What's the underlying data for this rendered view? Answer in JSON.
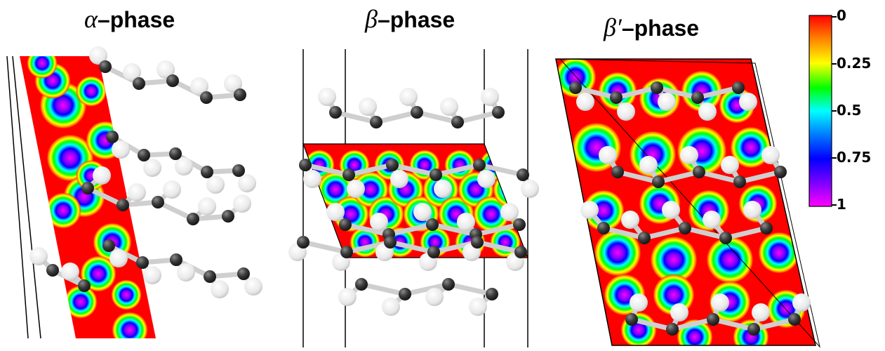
{
  "panels": [
    {
      "greek": "α",
      "suffix": "–phase"
    },
    {
      "greek": "β",
      "suffix": "–phase"
    },
    {
      "greek": "β′",
      "suffix": "–phase"
    }
  ],
  "colorbar": {
    "ticks": [
      "0",
      "0.25",
      "0.5",
      "0.75",
      "1"
    ],
    "colors": [
      "#ff0000",
      "#ff8000",
      "#ffff00",
      "#00ff00",
      "#00ffff",
      "#0060ff",
      "#0000ff",
      "#8000ff",
      "#ff00ff"
    ]
  },
  "atoms": {
    "light_color": "#f2f2f2",
    "dark_color": "#333333"
  }
}
